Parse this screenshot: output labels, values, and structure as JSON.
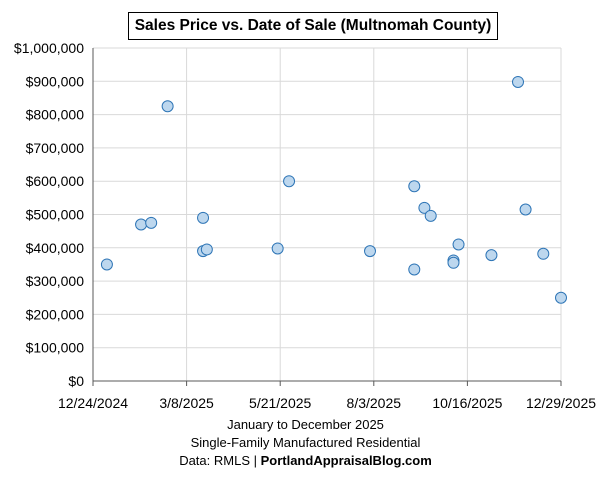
{
  "chart_data": {
    "type": "scatter",
    "title": "Sales Price vs. Date of Sale (Multnomah County)",
    "xlabel": "January to December 2025",
    "subtitle": "Single-Family Manufactured Residential",
    "source_prefix": "Data: RMLS | ",
    "source_site": "PortlandAppraisalBlog.com",
    "x_ticks": [
      "12/24/2024",
      "3/8/2025",
      "5/21/2025",
      "8/3/2025",
      "10/16/2025",
      "12/29/2025"
    ],
    "xlim": [
      "2024-12-24",
      "2025-12-29"
    ],
    "y_ticks": [
      "$0",
      "$100,000",
      "$200,000",
      "$300,000",
      "$400,000",
      "$500,000",
      "$600,000",
      "$700,000",
      "$800,000",
      "$900,000",
      "$1,000,000"
    ],
    "ylim": [
      0,
      1000000
    ],
    "grid": true,
    "marker_fill": "#bdd7ee",
    "marker_stroke": "#2e75b6",
    "points": [
      {
        "date": "2025-01-04",
        "price": 350000
      },
      {
        "date": "2025-01-31",
        "price": 470000
      },
      {
        "date": "2025-02-08",
        "price": 475000
      },
      {
        "date": "2025-02-21",
        "price": 825000
      },
      {
        "date": "2025-03-21",
        "price": 490000
      },
      {
        "date": "2025-03-21",
        "price": 390000
      },
      {
        "date": "2025-03-24",
        "price": 395000
      },
      {
        "date": "2025-05-19",
        "price": 398000
      },
      {
        "date": "2025-05-28",
        "price": 600000
      },
      {
        "date": "2025-07-31",
        "price": 390000
      },
      {
        "date": "2025-09-04",
        "price": 585000
      },
      {
        "date": "2025-09-04",
        "price": 335000
      },
      {
        "date": "2025-09-12",
        "price": 520000
      },
      {
        "date": "2025-09-17",
        "price": 496000
      },
      {
        "date": "2025-10-05",
        "price": 362000
      },
      {
        "date": "2025-10-05",
        "price": 355000
      },
      {
        "date": "2025-10-09",
        "price": 410000
      },
      {
        "date": "2025-11-04",
        "price": 378000
      },
      {
        "date": "2025-11-25",
        "price": 898000
      },
      {
        "date": "2025-12-01",
        "price": 515000
      },
      {
        "date": "2025-12-15",
        "price": 382000
      },
      {
        "date": "2025-12-29",
        "price": 250000
      }
    ]
  }
}
